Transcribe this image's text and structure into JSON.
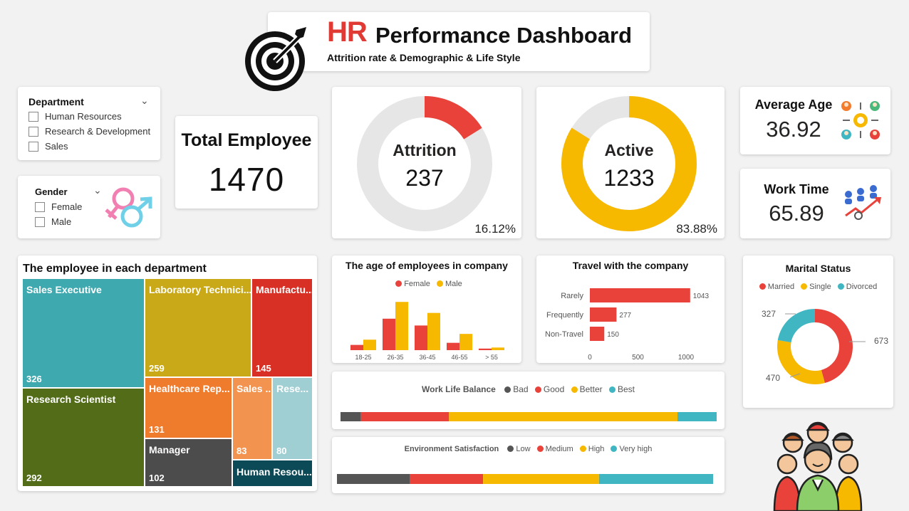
{
  "header": {
    "title_hr": "HR",
    "title_rest": "Performance Dashboard",
    "subtitle": "Attrition rate & Demographic & Life Style"
  },
  "department_slicer": {
    "title": "Department",
    "options": [
      "Human Resources",
      "Research & Development",
      "Sales"
    ]
  },
  "gender_slicer": {
    "title": "Gender",
    "options": [
      "Female",
      "Male"
    ]
  },
  "total_employee": {
    "label": "Total Employee",
    "value": "1470"
  },
  "attrition": {
    "label": "Attrition",
    "value": "237",
    "percent": "16.12%",
    "fraction": 0.1612,
    "color": "#e8423a"
  },
  "active": {
    "label": "Active",
    "value": "1233",
    "percent": "83.88%",
    "fraction": 0.8388,
    "color": "#f7b900"
  },
  "average_age": {
    "label": "Average Age",
    "value": "36.92"
  },
  "work_time": {
    "label": "Work Time",
    "value": "65.89"
  },
  "treemap": {
    "title": "The employee in each department",
    "tiles": [
      {
        "label": "Sales Executive",
        "value": "326",
        "color": "#3fa9b0"
      },
      {
        "label": "Research Scientist",
        "value": "292",
        "color": "#526c17"
      },
      {
        "label": "Laboratory Technici...",
        "value": "259",
        "color": "#c9a918"
      },
      {
        "label": "Healthcare Rep...",
        "value": "131",
        "color": "#ef7b2d"
      },
      {
        "label": "Manager",
        "value": "102",
        "color": "#4c4c4c"
      },
      {
        "label": "Manufactu...",
        "value": "145",
        "color": "#d93026"
      },
      {
        "label": "Sales ...",
        "value": "83",
        "color": "#f2944f"
      },
      {
        "label": "Rese...",
        "value": "80",
        "color": "#9fced3"
      },
      {
        "label": "Human Resou...",
        "value": "",
        "color": "#0d4a57"
      }
    ]
  },
  "age_chart": {
    "title": "The age of employees in company",
    "legend": [
      "Female",
      "Male"
    ]
  },
  "travel_chart": {
    "title": "Travel with the company"
  },
  "marital_chart": {
    "title": "Marital Status",
    "legend": [
      "Married",
      "Single",
      "Divorced"
    ]
  },
  "work_life": {
    "title": "Work Life Balance",
    "legend": [
      "Bad",
      "Good",
      "Better",
      "Best"
    ]
  },
  "environment": {
    "title": "Environment Satisfaction",
    "legend": [
      "Low",
      "Medium",
      "High",
      "Very high"
    ]
  },
  "chart_data": [
    {
      "type": "bar",
      "title": "The age of employees in company",
      "categories": [
        "18-25",
        "26-35",
        "36-45",
        "46-55",
        "> 55"
      ],
      "series": [
        {
          "name": "Female",
          "values": [
            10,
            60,
            47,
            14,
            3
          ],
          "color": "#e8423a"
        },
        {
          "name": "Male",
          "values": [
            20,
            92,
            71,
            31,
            5
          ],
          "color": "#f7b900"
        }
      ]
    },
    {
      "type": "bar",
      "title": "Travel with the company",
      "orientation": "horizontal",
      "categories": [
        "Rarely",
        "Frequently",
        "Non-Travel"
      ],
      "values": [
        1043,
        277,
        150
      ],
      "xlim": [
        0,
        1200
      ],
      "xticks": [
        "0",
        "500",
        "1000"
      ],
      "color": "#e8423a"
    },
    {
      "type": "pie",
      "title": "Marital Status",
      "categories": [
        "Married",
        "Single",
        "Divorced"
      ],
      "values": [
        673,
        470,
        327
      ],
      "colors": [
        "#e8423a",
        "#f7b900",
        "#3fb6c1"
      ]
    },
    {
      "type": "bar",
      "title": "Work Life Balance",
      "stacked": true,
      "categories": [
        "Bad",
        "Good",
        "Better",
        "Best"
      ],
      "values": [
        80,
        344,
        893,
        153
      ],
      "colors": [
        "#555555",
        "#e8423a",
        "#f7b900",
        "#3fb6c1"
      ]
    },
    {
      "type": "bar",
      "title": "Environment Satisfaction",
      "stacked": true,
      "categories": [
        "Low",
        "Medium",
        "High",
        "Very high"
      ],
      "values": [
        284,
        287,
        453,
        446
      ],
      "colors": [
        "#555555",
        "#e8423a",
        "#f7b900",
        "#3fb6c1"
      ]
    }
  ]
}
